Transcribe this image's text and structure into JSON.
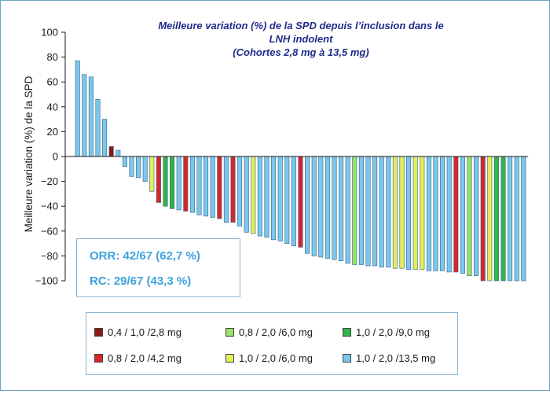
{
  "chart_data": {
    "type": "bar",
    "title": [
      "Meilleure variation (%) de la SPD depuis l’inclusion dans le",
      "LNH indolent",
      "(Cohortes 2,8 mg à 13,5 mg)"
    ],
    "ylabel": "Meilleure variation (%) de la SPD",
    "xlabel": "",
    "ylim": [
      -100,
      100
    ],
    "yticks": [
      "100",
      "80",
      "60",
      "40",
      "20",
      "0",
      "−20",
      "−40",
      "−60",
      "−80",
      "−100"
    ],
    "grid": false,
    "values": [
      77,
      66,
      64,
      46,
      30,
      8,
      5,
      -8,
      -16,
      -17,
      -20,
      -28,
      -37,
      -40,
      -42,
      -43,
      -44,
      -45,
      -47,
      -48,
      -49,
      -50,
      -53,
      -53,
      -56,
      -61,
      -62,
      -64,
      -65,
      -67,
      -68,
      -70,
      -72,
      -73,
      -78,
      -80,
      -81,
      -82,
      -83,
      -84,
      -86,
      -87,
      -87,
      -88,
      -88,
      -89,
      -89,
      -90,
      -90,
      -91,
      -91,
      -91,
      -92,
      -92,
      -92,
      -93,
      -93,
      -94,
      -96,
      -96,
      -100,
      -100,
      -100,
      -100,
      -100,
      -100,
      -100
    ],
    "groups": [
      5,
      5,
      5,
      5,
      5,
      0,
      5,
      5,
      5,
      5,
      5,
      3,
      1,
      4,
      4,
      5,
      1,
      5,
      5,
      5,
      5,
      1,
      5,
      1,
      5,
      5,
      3,
      5,
      5,
      5,
      5,
      5,
      5,
      1,
      5,
      5,
      5,
      5,
      5,
      5,
      5,
      2,
      5,
      5,
      5,
      5,
      5,
      3,
      3,
      5,
      3,
      3,
      5,
      5,
      5,
      5,
      1,
      5,
      2,
      5,
      1,
      3,
      4,
      4,
      5,
      5,
      5
    ],
    "legend": [
      {
        "label": "0,4 / 1,0 /2,8 mg",
        "color": "#8b1a1a"
      },
      {
        "label": "0,8 / 2,0 /4,2 mg",
        "color": "#d7262b"
      },
      {
        "label": "0,8 / 2,0 /6,0 mg",
        "color": "#9be06a"
      },
      {
        "label": "1,0 / 2,0 /6,0 mg",
        "color": "#e3ef5a"
      },
      {
        "label": "1,0 / 2,0 /9,0 mg",
        "color": "#35b24a"
      },
      {
        "label": "1,0 / 2,0 /13,5 mg",
        "color": "#7cc7ec"
      }
    ],
    "legend_position": "bottom",
    "annotations": [
      "ORR: 42/67 (62,7 %)",
      "RC: 29/67 (43,3 %)"
    ]
  },
  "colors": {
    "axis": "#1a1a1a",
    "title": "#1f2a8a",
    "annotation": "#3ea3dc",
    "frame": "#6fa3c4",
    "bar_stroke": "#2f5f80"
  }
}
